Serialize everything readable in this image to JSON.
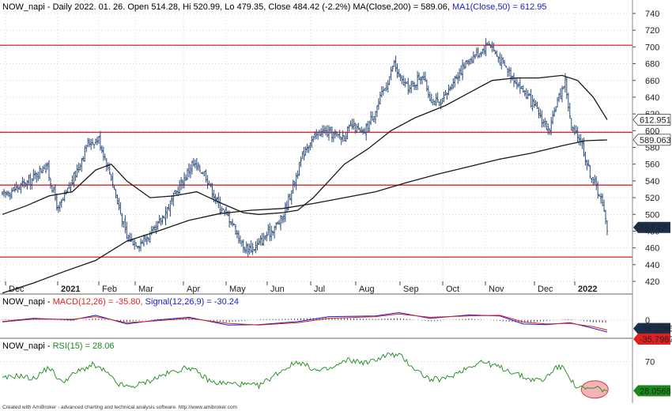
{
  "header": {
    "symbol": "NOW_napi",
    "info": " - Daily 2022. 01. 26. Open 514.28, Hi 520.99, Lo 479.35, Close 484.42 (-2.2%) ",
    "ma200_label": "MA(Close,200) = 589.06, ",
    "ma50_label": "MA1(Close,50) = 612.95"
  },
  "macd_title": {
    "symbol": "NOW_napi",
    "sep": " - ",
    "macd_label": "MACD(12,26) = -35.80, ",
    "signal_label": "Signal(12,26,9) = -30.24"
  },
  "rsi_title": {
    "symbol": "NOW_napi",
    "sep": " - ",
    "rsi_label": "RSI(15) = 28.06"
  },
  "footer": "Created with AmiBroker - advanced charting and technical analysis software. http://www.amibroker.com",
  "colors": {
    "ma200": "#1a1a1a",
    "ma50": "#1a1a1a",
    "bars": "#2b4a7a",
    "resistance_line": "#e02020",
    "macd": "#1a1acc",
    "signal": "#e02020",
    "histogram": "#1a1a1a",
    "rsi": "#1a8a1a",
    "price_tag": "#1c2f4a",
    "grid": "#b0b0b0",
    "highlight": "#f08080"
  },
  "chart_data": [
    {
      "type": "ohlc",
      "title": "NOW_napi",
      "x_labels": [
        "Dec",
        "2021",
        "Feb",
        "Mar",
        "Apr",
        "May",
        "Jun",
        "Jul",
        "Aug",
        "Sep",
        "Oct",
        "Nov",
        "Dec",
        "2022"
      ],
      "y_ticks": [
        420,
        440,
        460,
        480,
        500,
        520,
        540,
        560,
        580,
        600,
        620,
        640,
        660,
        680,
        700,
        720,
        740
      ],
      "ylim": [
        400,
        750
      ],
      "grid": true,
      "horizontal_lines": [
        702,
        598,
        535,
        449
      ],
      "price_markers": [
        {
          "label": "612.951",
          "value": 612.95
        },
        {
          "label": "589.063",
          "value": 589.06
        },
        {
          "label": "484.42",
          "value": 484.42
        }
      ],
      "close_anchors": [
        {
          "x": 0,
          "y": 523
        },
        {
          "x": 18,
          "y": 540
        },
        {
          "x": 28,
          "y": 560
        },
        {
          "x": 36,
          "y": 505
        },
        {
          "x": 45,
          "y": 540
        },
        {
          "x": 55,
          "y": 585
        },
        {
          "x": 62,
          "y": 590
        },
        {
          "x": 70,
          "y": 545
        },
        {
          "x": 80,
          "y": 472
        },
        {
          "x": 88,
          "y": 465
        },
        {
          "x": 98,
          "y": 480
        },
        {
          "x": 110,
          "y": 520
        },
        {
          "x": 122,
          "y": 560
        },
        {
          "x": 130,
          "y": 550
        },
        {
          "x": 138,
          "y": 515
        },
        {
          "x": 148,
          "y": 490
        },
        {
          "x": 155,
          "y": 460
        },
        {
          "x": 162,
          "y": 460
        },
        {
          "x": 170,
          "y": 475
        },
        {
          "x": 180,
          "y": 495
        },
        {
          "x": 195,
          "y": 580
        },
        {
          "x": 205,
          "y": 600
        },
        {
          "x": 218,
          "y": 592
        },
        {
          "x": 225,
          "y": 605
        },
        {
          "x": 232,
          "y": 595
        },
        {
          "x": 240,
          "y": 625
        },
        {
          "x": 248,
          "y": 660
        },
        {
          "x": 252,
          "y": 680
        },
        {
          "x": 256,
          "y": 660
        },
        {
          "x": 262,
          "y": 650
        },
        {
          "x": 270,
          "y": 668
        },
        {
          "x": 275,
          "y": 640
        },
        {
          "x": 282,
          "y": 630
        },
        {
          "x": 290,
          "y": 660
        },
        {
          "x": 300,
          "y": 685
        },
        {
          "x": 308,
          "y": 695
        },
        {
          "x": 313,
          "y": 706
        },
        {
          "x": 318,
          "y": 690
        },
        {
          "x": 322,
          "y": 680
        },
        {
          "x": 330,
          "y": 660
        },
        {
          "x": 338,
          "y": 640
        },
        {
          "x": 345,
          "y": 620
        },
        {
          "x": 352,
          "y": 598
        },
        {
          "x": 356,
          "y": 630
        },
        {
          "x": 362,
          "y": 660
        },
        {
          "x": 366,
          "y": 600
        },
        {
          "x": 372,
          "y": 590
        },
        {
          "x": 376,
          "y": 560
        },
        {
          "x": 380,
          "y": 540
        },
        {
          "x": 385,
          "y": 520
        },
        {
          "x": 389,
          "y": 484
        }
      ],
      "series": [
        {
          "name": "MA(Close,200)",
          "points": [
            {
              "x": 0,
              "y": 406
            },
            {
              "x": 20,
              "y": 418
            },
            {
              "x": 40,
              "y": 432
            },
            {
              "x": 60,
              "y": 445
            },
            {
              "x": 80,
              "y": 468
            },
            {
              "x": 100,
              "y": 480
            },
            {
              "x": 120,
              "y": 493
            },
            {
              "x": 140,
              "y": 501
            },
            {
              "x": 160,
              "y": 505
            },
            {
              "x": 180,
              "y": 507
            },
            {
              "x": 200,
              "y": 513
            },
            {
              "x": 220,
              "y": 520
            },
            {
              "x": 240,
              "y": 527
            },
            {
              "x": 260,
              "y": 538
            },
            {
              "x": 280,
              "y": 548
            },
            {
              "x": 300,
              "y": 557
            },
            {
              "x": 320,
              "y": 566
            },
            {
              "x": 340,
              "y": 573
            },
            {
              "x": 360,
              "y": 582
            },
            {
              "x": 375,
              "y": 588
            },
            {
              "x": 389,
              "y": 589
            }
          ]
        },
        {
          "name": "MA1(Close,50)",
          "points": [
            {
              "x": 0,
              "y": 500
            },
            {
              "x": 15,
              "y": 510
            },
            {
              "x": 30,
              "y": 522
            },
            {
              "x": 45,
              "y": 527
            },
            {
              "x": 60,
              "y": 553
            },
            {
              "x": 70,
              "y": 560
            },
            {
              "x": 80,
              "y": 540
            },
            {
              "x": 95,
              "y": 520
            },
            {
              "x": 110,
              "y": 522
            },
            {
              "x": 125,
              "y": 527
            },
            {
              "x": 140,
              "y": 514
            },
            {
              "x": 155,
              "y": 502
            },
            {
              "x": 165,
              "y": 500
            },
            {
              "x": 180,
              "y": 502
            },
            {
              "x": 190,
              "y": 505
            },
            {
              "x": 200,
              "y": 520
            },
            {
              "x": 210,
              "y": 540
            },
            {
              "x": 220,
              "y": 560
            },
            {
              "x": 235,
              "y": 578
            },
            {
              "x": 250,
              "y": 600
            },
            {
              "x": 265,
              "y": 615
            },
            {
              "x": 285,
              "y": 630
            },
            {
              "x": 300,
              "y": 645
            },
            {
              "x": 315,
              "y": 660
            },
            {
              "x": 330,
              "y": 663
            },
            {
              "x": 345,
              "y": 663
            },
            {
              "x": 360,
              "y": 666
            },
            {
              "x": 370,
              "y": 660
            },
            {
              "x": 380,
              "y": 640
            },
            {
              "x": 389,
              "y": 613
            }
          ]
        }
      ]
    },
    {
      "type": "line",
      "title": "MACD(12,26)",
      "y_ticks": [
        0
      ],
      "price_markers": [
        {
          "label": "-30.2386",
          "value": -30.24
        },
        {
          "label": "-35.7987",
          "value": -35.8
        }
      ],
      "series": [
        {
          "name": "MACD(12,26)",
          "points": [
            {
              "x": 0,
              "y": -5
            },
            {
              "x": 20,
              "y": 5
            },
            {
              "x": 45,
              "y": 0
            },
            {
              "x": 60,
              "y": 14
            },
            {
              "x": 80,
              "y": -12
            },
            {
              "x": 100,
              "y": 0
            },
            {
              "x": 120,
              "y": 8
            },
            {
              "x": 145,
              "y": -15
            },
            {
              "x": 165,
              "y": -14
            },
            {
              "x": 190,
              "y": -5
            },
            {
              "x": 210,
              "y": 10
            },
            {
              "x": 240,
              "y": 12
            },
            {
              "x": 255,
              "y": 22
            },
            {
              "x": 275,
              "y": 5
            },
            {
              "x": 300,
              "y": 15
            },
            {
              "x": 320,
              "y": 12
            },
            {
              "x": 335,
              "y": -12
            },
            {
              "x": 350,
              "y": -14
            },
            {
              "x": 365,
              "y": -8
            },
            {
              "x": 380,
              "y": -25
            },
            {
              "x": 389,
              "y": -36
            }
          ]
        },
        {
          "name": "Signal(12,26,9)",
          "points": [
            {
              "x": 0,
              "y": -6
            },
            {
              "x": 20,
              "y": 3
            },
            {
              "x": 45,
              "y": 2
            },
            {
              "x": 60,
              "y": 10
            },
            {
              "x": 80,
              "y": -8
            },
            {
              "x": 100,
              "y": -2
            },
            {
              "x": 120,
              "y": 5
            },
            {
              "x": 145,
              "y": -10
            },
            {
              "x": 165,
              "y": -15
            },
            {
              "x": 190,
              "y": -8
            },
            {
              "x": 210,
              "y": 5
            },
            {
              "x": 240,
              "y": 10
            },
            {
              "x": 255,
              "y": 18
            },
            {
              "x": 275,
              "y": 8
            },
            {
              "x": 300,
              "y": 12
            },
            {
              "x": 320,
              "y": 14
            },
            {
              "x": 335,
              "y": -6
            },
            {
              "x": 350,
              "y": -12
            },
            {
              "x": 365,
              "y": -10
            },
            {
              "x": 380,
              "y": -20
            },
            {
              "x": 389,
              "y": -30
            }
          ]
        }
      ]
    },
    {
      "type": "line",
      "title": "RSI(15)",
      "y_ticks": [
        70
      ],
      "price_markers": [
        {
          "label": "28.0568",
          "value": 28.06
        }
      ],
      "series": [
        {
          "name": "RSI(15)",
          "points": [
            {
              "x": 0,
              "y": 45
            },
            {
              "x": 10,
              "y": 50
            },
            {
              "x": 20,
              "y": 45
            },
            {
              "x": 30,
              "y": 62
            },
            {
              "x": 38,
              "y": 40
            },
            {
              "x": 48,
              "y": 55
            },
            {
              "x": 58,
              "y": 65
            },
            {
              "x": 66,
              "y": 56
            },
            {
              "x": 74,
              "y": 38
            },
            {
              "x": 82,
              "y": 33
            },
            {
              "x": 92,
              "y": 40
            },
            {
              "x": 105,
              "y": 52
            },
            {
              "x": 120,
              "y": 62
            },
            {
              "x": 135,
              "y": 40
            },
            {
              "x": 150,
              "y": 38
            },
            {
              "x": 165,
              "y": 35
            },
            {
              "x": 178,
              "y": 55
            },
            {
              "x": 190,
              "y": 70
            },
            {
              "x": 203,
              "y": 56
            },
            {
              "x": 212,
              "y": 60
            },
            {
              "x": 222,
              "y": 72
            },
            {
              "x": 235,
              "y": 68
            },
            {
              "x": 248,
              "y": 80
            },
            {
              "x": 256,
              "y": 78
            },
            {
              "x": 265,
              "y": 60
            },
            {
              "x": 275,
              "y": 44
            },
            {
              "x": 285,
              "y": 45
            },
            {
              "x": 298,
              "y": 60
            },
            {
              "x": 308,
              "y": 70
            },
            {
              "x": 318,
              "y": 63
            },
            {
              "x": 328,
              "y": 55
            },
            {
              "x": 338,
              "y": 45
            },
            {
              "x": 348,
              "y": 43
            },
            {
              "x": 356,
              "y": 62
            },
            {
              "x": 362,
              "y": 60
            },
            {
              "x": 368,
              "y": 35
            },
            {
              "x": 375,
              "y": 30
            },
            {
              "x": 382,
              "y": 32
            },
            {
              "x": 389,
              "y": 28
            }
          ]
        }
      ],
      "annotations": [
        "highlighted oversold region at end"
      ]
    }
  ]
}
